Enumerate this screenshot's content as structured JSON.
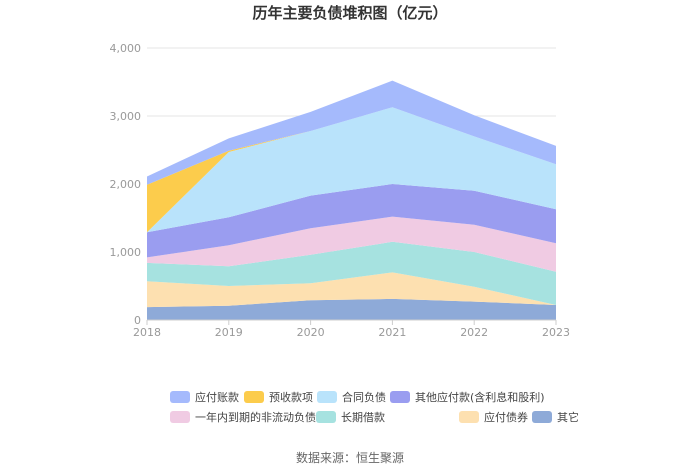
{
  "chart_data": {
    "type": "area",
    "stacked": true,
    "title": "历年主要负债堆积图（亿元）",
    "x": [
      "2018",
      "2019",
      "2020",
      "2021",
      "2022",
      "2023"
    ],
    "y_ticks": [
      "0",
      "1,000",
      "2,000",
      "3,000",
      "4,000"
    ],
    "ylim": [
      0,
      4000
    ],
    "grid": true,
    "legend_position": "bottom",
    "series": [
      {
        "name": "其它",
        "color": "#8eaad8",
        "values": [
          190,
          210,
          290,
          310,
          270,
          220
        ]
      },
      {
        "name": "应付债券",
        "color": "#fde0b0",
        "values": [
          380,
          290,
          250,
          390,
          220,
          0
        ]
      },
      {
        "name": "长期借款",
        "color": "#a6e2e0",
        "values": [
          270,
          290,
          420,
          450,
          510,
          490
        ]
      },
      {
        "name": "一年内到期的非流动负债",
        "color": "#f0cbe3",
        "values": [
          80,
          310,
          390,
          370,
          400,
          420
        ]
      },
      {
        "name": "其他应付款(含利息和股利)",
        "color": "#9a9df0",
        "values": [
          370,
          410,
          480,
          480,
          500,
          500
        ]
      },
      {
        "name": "合同负债",
        "color": "#b9e3fb",
        "values": [
          0,
          960,
          950,
          1130,
          800,
          660
        ]
      },
      {
        "name": "预收款项",
        "color": "#fccc4c",
        "values": [
          700,
          20,
          0,
          0,
          0,
          0
        ]
      },
      {
        "name": "应付账款",
        "color": "#a5bafc",
        "values": [
          120,
          180,
          280,
          390,
          310,
          270
        ]
      }
    ],
    "legend_order": [
      "应付账款",
      "预收款项",
      "合同负债",
      "其他应付款(含利息和股利)",
      "一年内到期的非流动负债",
      "长期借款",
      "应付债券",
      "其它"
    ]
  },
  "source": "数据来源：恒生聚源"
}
